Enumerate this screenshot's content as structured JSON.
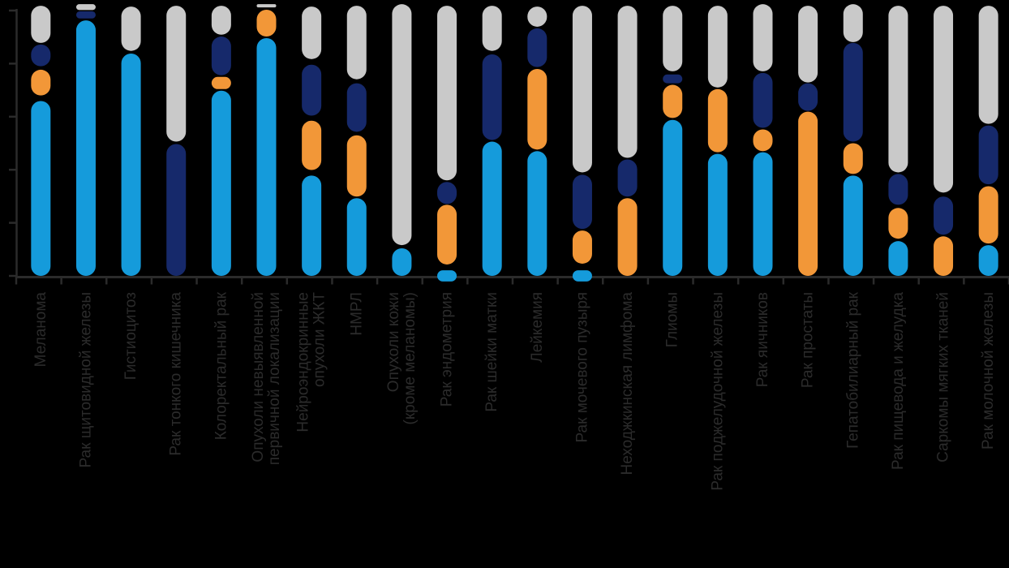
{
  "chart_data": {
    "type": "bar",
    "subtype": "stacked-capsule-columns",
    "title": "",
    "xlabel": "",
    "ylabel": "",
    "grid": false,
    "legend": "none",
    "ylim": [
      0,
      100
    ],
    "y_ticks_percent": [
      0,
      20,
      40,
      60,
      80,
      100
    ],
    "unit": "percent (unlabeled axis, estimated from 6 evenly spaced ticks)",
    "colors": {
      "lb": "#159BDB",
      "or": "#F29738",
      "nv": "#16296B",
      "gr": "#C9C9C9",
      "axis": "#2B2B2B",
      "label_text": "#2B2B2B",
      "background": "#000000"
    },
    "color_legend_names": {
      "lb": "light-blue-segment",
      "or": "orange-segment",
      "nv": "navy-segment",
      "gr": "gray-segment"
    },
    "columns": [
      {
        "label": "Меланома",
        "label_lines": [
          "Меланома"
        ],
        "segments": [
          [
            "lb",
            0,
            65.9
          ],
          [
            "or",
            68,
            77.7
          ],
          [
            "nv",
            79,
            87.2
          ],
          [
            "gr",
            87.8,
            101.8
          ]
        ]
      },
      {
        "label": "Рак щитовидной железы",
        "label_lines": [
          "Рак щитовидной железы"
        ],
        "segments": [
          [
            "lb",
            0,
            96.3
          ],
          [
            "nv",
            97,
            99.7
          ],
          [
            "gr",
            100.2,
            102.4
          ]
        ]
      },
      {
        "label": "Гистиоцитоз",
        "label_lines": [
          "Гистиоцитоз"
        ],
        "segments": [
          [
            "lb",
            0,
            83.8
          ],
          [
            "gr",
            84.8,
            101.5
          ]
        ]
      },
      {
        "label": "Рак тонкого кишечника",
        "label_lines": [
          "Рак тонкого кишечника"
        ],
        "segments": [
          [
            "nv",
            0,
            49.7
          ],
          [
            "gr",
            50.6,
            101.8
          ]
        ]
      },
      {
        "label": "Колоректальный рак",
        "label_lines": [
          "Колоректальный рак"
        ],
        "segments": [
          [
            "lb",
            0,
            69.8
          ],
          [
            "or",
            70.4,
            75
          ],
          [
            "nv",
            75.6,
            90.2
          ],
          [
            "gr",
            90.9,
            101.8
          ]
        ]
      },
      {
        "label": "Опухоли невыявленной первичной локализации",
        "label_lines": [
          "Опухоли невыявленной",
          "первичной локализации"
        ],
        "segments": [
          [
            "lb",
            0,
            89.6
          ],
          [
            "or",
            90.2,
            100.3
          ],
          [
            "gr",
            101.2,
            102.4
          ]
        ]
      },
      {
        "label": "Нейроэндокринные опухоли ЖКТ",
        "label_lines": [
          "Нейроэндокринные",
          "опухоли ЖКТ"
        ],
        "segments": [
          [
            "lb",
            0,
            37.8
          ],
          [
            "or",
            39.9,
            58.5
          ],
          [
            "nv",
            60.4,
            79.6
          ],
          [
            "gr",
            81.7,
            101.5
          ]
        ]
      },
      {
        "label": "НМРЛ",
        "label_lines": [
          "НМРЛ"
        ],
        "segments": [
          [
            "lb",
            0,
            29.3
          ],
          [
            "or",
            29.9,
            53
          ],
          [
            "nv",
            54.3,
            72.6
          ],
          [
            "gr",
            74.1,
            101.8
          ]
        ]
      },
      {
        "label": "Опухоли кожи (кроме меланомы)",
        "label_lines": [
          "Опухоли кожи",
          "(кроме меланомы)"
        ],
        "segments": [
          [
            "lb",
            0,
            10.4
          ],
          [
            "gr",
            11.6,
            102.4
          ]
        ]
      },
      {
        "label": "Рак эндометрия",
        "label_lines": [
          "Рак эндометрия"
        ],
        "segments": [
          [
            "lb",
            -2.1,
            2.1
          ],
          [
            "or",
            4.3,
            26.8
          ],
          [
            "nv",
            27.1,
            35.4
          ],
          [
            "gr",
            36,
            101.8
          ]
        ]
      },
      {
        "label": "Рак шейки матки",
        "label_lines": [
          "Рак шейки матки"
        ],
        "segments": [
          [
            "lb",
            0,
            50.6
          ],
          [
            "nv",
            51.2,
            83.5
          ],
          [
            "gr",
            84.8,
            101.8
          ]
        ]
      },
      {
        "label": "Лейкемия",
        "label_lines": [
          "Лейкемия"
        ],
        "segments": [
          [
            "lb",
            0,
            47
          ],
          [
            "or",
            47.6,
            78
          ],
          [
            "nv",
            78.7,
            93.3
          ],
          [
            "gr",
            93.9,
            101.5
          ]
        ]
      },
      {
        "label": "Рак мочевого пузыря",
        "label_lines": [
          "Рак мочевого пузыря"
        ],
        "segments": [
          [
            "lb",
            -2.1,
            2.1
          ],
          [
            "or",
            4.6,
            17.1
          ],
          [
            "nv",
            17.7,
            38.1
          ],
          [
            "gr",
            39,
            101.8
          ]
        ]
      },
      {
        "label": "Неходжкинская лимфома",
        "label_lines": [
          "Неходжкинская лимфома"
        ],
        "segments": [
          [
            "or",
            0,
            29.3
          ],
          [
            "nv",
            29.9,
            43.9
          ],
          [
            "gr",
            44.5,
            101.8
          ]
        ]
      },
      {
        "label": "Глиомы",
        "label_lines": [
          "Глиомы"
        ],
        "segments": [
          [
            "lb",
            0,
            58.8
          ],
          [
            "or",
            59.5,
            72
          ],
          [
            "nv",
            72.6,
            75.9
          ],
          [
            "gr",
            77.1,
            101.8
          ]
        ]
      },
      {
        "label": "Рак поджелудочной железы",
        "label_lines": [
          "Рак поджелудочной железы"
        ],
        "segments": [
          [
            "lb",
            0,
            46
          ],
          [
            "or",
            46.6,
            70.4
          ],
          [
            "gr",
            71,
            101.8
          ]
        ]
      },
      {
        "label": "Рак яичников",
        "label_lines": [
          "Рак яичников"
        ],
        "segments": [
          [
            "lb",
            0,
            46.6
          ],
          [
            "or",
            47,
            55.2
          ],
          [
            "nv",
            55.8,
            76.5
          ],
          [
            "gr",
            77.1,
            102.4
          ]
        ]
      },
      {
        "label": "Рак простаты",
        "label_lines": [
          "Рак простаты"
        ],
        "segments": [
          [
            "or",
            0,
            61.9
          ],
          [
            "nv",
            62.2,
            72.6
          ],
          [
            "gr",
            72.9,
            101.8
          ]
        ]
      },
      {
        "label": "Гепатобилиарный рак",
        "label_lines": [
          "Гепатобилиарный рак"
        ],
        "segments": [
          [
            "lb",
            0,
            37.8
          ],
          [
            "or",
            38.4,
            50
          ],
          [
            "nv",
            50.6,
            87.8
          ],
          [
            "gr",
            88.1,
            102.4
          ]
        ]
      },
      {
        "label": "Рак пищевода и желудка",
        "label_lines": [
          "Рак пищевода и желудка"
        ],
        "segments": [
          [
            "lb",
            0,
            13.1
          ],
          [
            "or",
            14,
            25.6
          ],
          [
            "nv",
            26.8,
            38.4
          ],
          [
            "gr",
            39,
            101.8
          ]
        ]
      },
      {
        "label": "Саркомы мягких тканей",
        "label_lines": [
          "Саркомы мягких тканей"
        ],
        "segments": [
          [
            "or",
            0,
            14.9
          ],
          [
            "nv",
            15.5,
            29.9
          ],
          [
            "gr",
            31.4,
            101.8
          ]
        ]
      },
      {
        "label": "Рак молочной железы",
        "label_lines": [
          "Рак молочной железы"
        ],
        "segments": [
          [
            "lb",
            0,
            11.6
          ],
          [
            "or",
            12.2,
            33.8
          ],
          [
            "nv",
            34.5,
            56.7
          ],
          [
            "gr",
            57.3,
            101.8
          ]
        ]
      }
    ]
  }
}
